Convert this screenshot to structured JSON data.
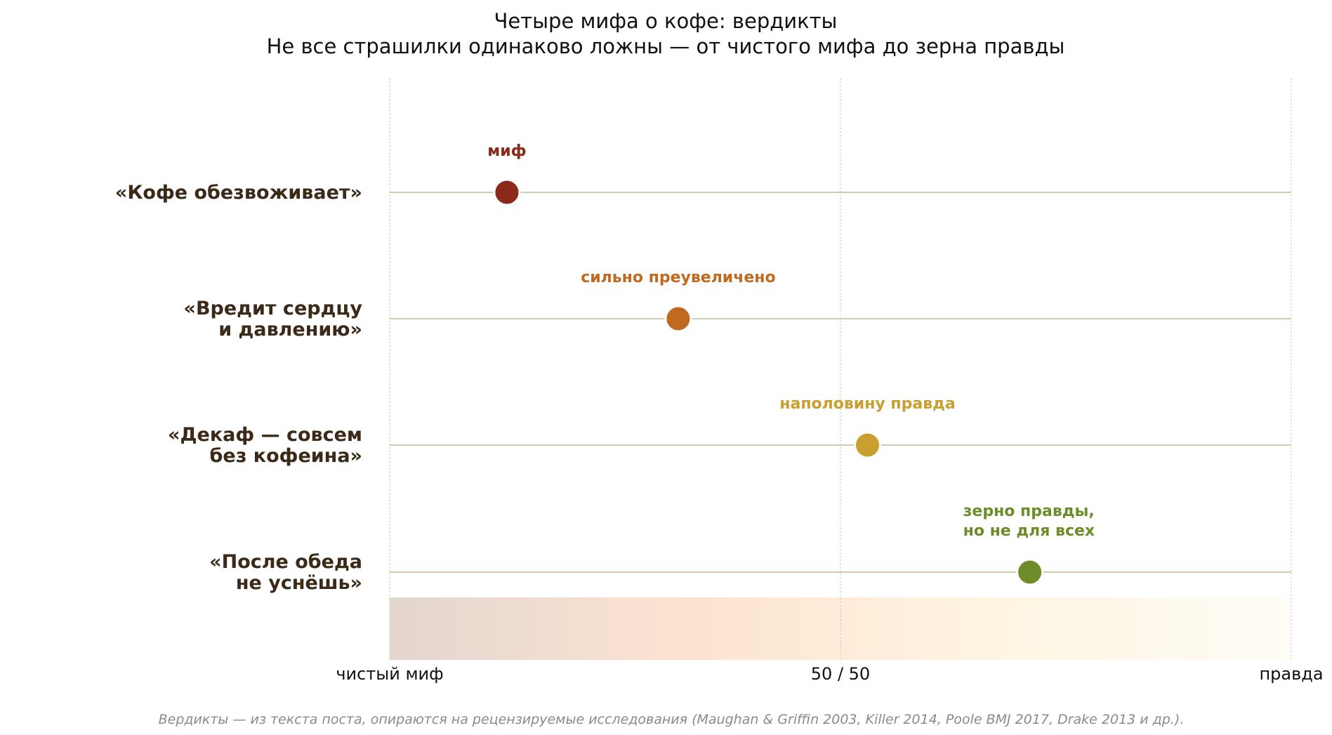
{
  "chart_data": {
    "type": "scatter",
    "title": "Четыре мифа о кофе: вердикты",
    "subtitle": "Не все страшилки одинаково ложны — от чистого мифа до зерна правды",
    "xlim": [
      0,
      100
    ],
    "x_ticks": [
      {
        "value": 0,
        "label": "чистый миф"
      },
      {
        "value": 50,
        "label": "50 / 50"
      },
      {
        "value": 100,
        "label": "правда"
      }
    ],
    "grid": "vertical dotted at ticks",
    "background_gradient": [
      "#e3d6cf",
      "#fde3d1",
      "#fef4e0",
      "#fffdf7"
    ],
    "points": [
      {
        "category": [
          "«Кофе обезвоживает»"
        ],
        "x": 13,
        "verdict": [
          "миф"
        ],
        "color": "#8b2a1a"
      },
      {
        "category": [
          "«Вредит сердцу",
          "и давлению»"
        ],
        "x": 32,
        "verdict": [
          "сильно преувеличено"
        ],
        "color": "#c06a20"
      },
      {
        "category": [
          "«Декаф — совсем",
          "без кофеина»"
        ],
        "x": 53,
        "verdict": [
          "наполовину правда"
        ],
        "color": "#c9a030"
      },
      {
        "category": [
          "«После обеда",
          "не уснёшь»"
        ],
        "x": 71,
        "verdict": [
          "зерно правды,",
          "но не для всех"
        ],
        "color": "#6e8c2a"
      }
    ],
    "row_line_color": "#d7c7b5",
    "caption": "Вердикты — из текста поста, опираются на рецензируемые исследования (Maughan & Griffin 2003, Killer 2014, Poole BMJ 2017, Drake 2013 и др.)."
  }
}
